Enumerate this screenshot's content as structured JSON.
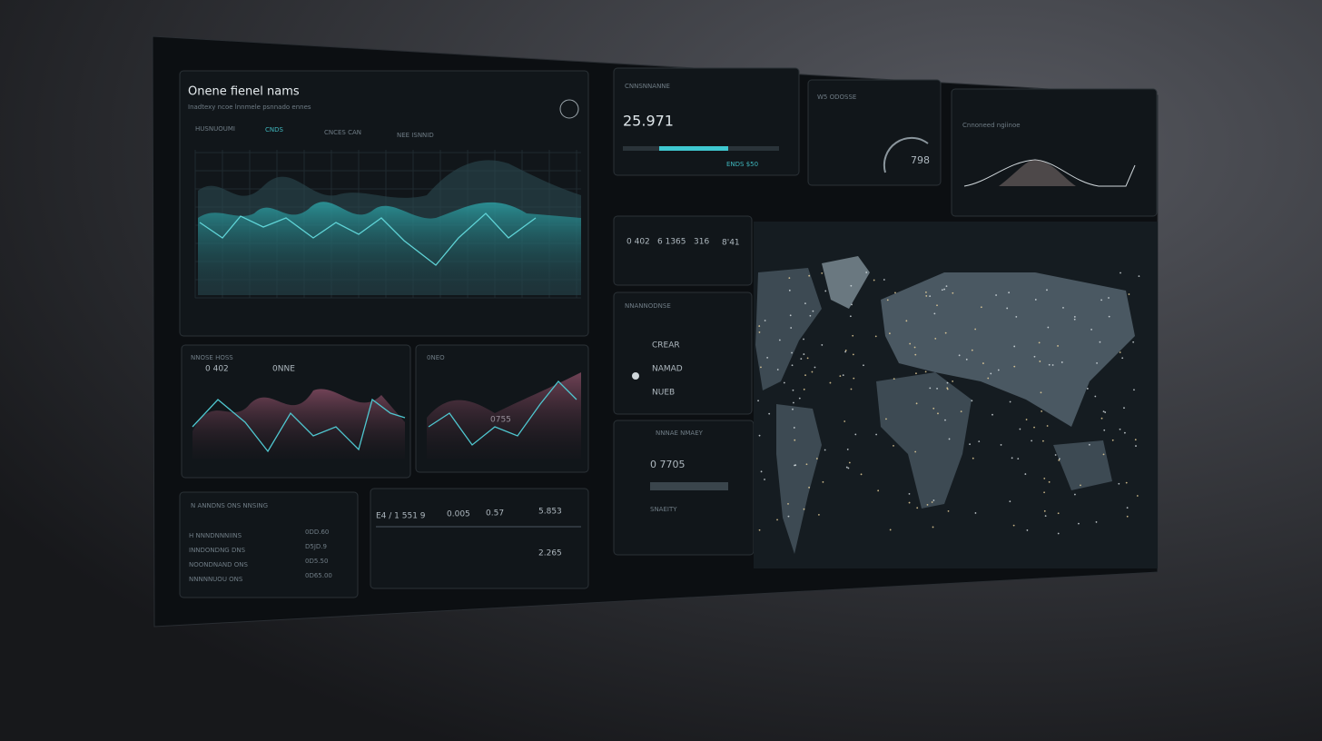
{
  "main_panel": {
    "title": "Onene fienel nams",
    "subtitle": "Inadtexy ncoe lnnmele psnnado ennes",
    "legend": [
      "HUSNUOUMI",
      "CNDS",
      "CNCES CAN",
      "NEE ISNNID"
    ]
  },
  "kpi_1": {
    "label": "CNNSNNANNE",
    "value": "25.971",
    "note": "ENDS $50"
  },
  "kpi_2": {
    "label": "W5 ODOSSE",
    "value": "798"
  },
  "kpi_3": {
    "label": "Cnnoneed ngiinoe"
  },
  "stats": [
    "0 402",
    "6 1365",
    "316",
    "8'41"
  ],
  "list": {
    "title": "NNANNODNSE",
    "items": [
      "CREAR",
      "NAMAD",
      "NUEB"
    ]
  },
  "side_panel": {
    "title": "NNNAE NMAEY",
    "value": "0 7705",
    "footer": "SNAEITY"
  },
  "chart_a": {
    "labels": [
      "NNOSE HOSS",
      "0 402",
      "0NNE"
    ]
  },
  "chart_b": {
    "labels": [
      "0NEO",
      "0755"
    ]
  },
  "table": {
    "title": "N ANNDNS ONS NNSING",
    "rows": [
      [
        "H NNNDNNNIINS",
        "0DD.60"
      ],
      [
        "INNDONDNG DNS",
        "D5JD.9"
      ],
      [
        "NOONDNAND ONS",
        "0D5.50"
      ],
      [
        "NNNNNUOU ONS",
        "0D65.00"
      ]
    ]
  },
  "ticker": {
    "values": [
      "E4 / 1 551 9",
      "0.005",
      "0.57",
      "5.853",
      "2.265"
    ]
  }
}
